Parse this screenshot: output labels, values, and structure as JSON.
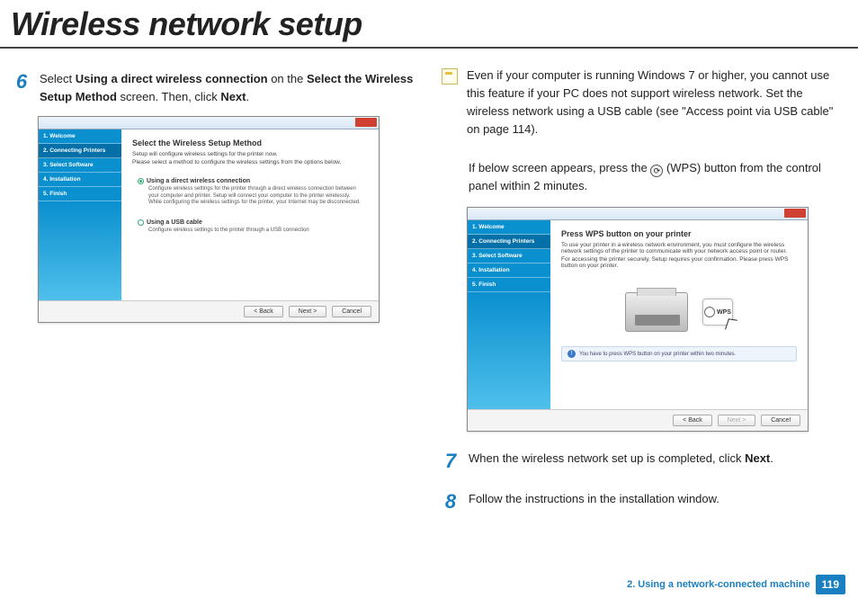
{
  "title": "Wireless network setup",
  "left": {
    "step6_num": "6",
    "step6_a": "Select ",
    "step6_b": "Using a direct wireless connection",
    "step6_c": " on the ",
    "step6_d": "Select the Wireless Setup Method",
    "step6_e": " screen. Then, click ",
    "step6_f": "Next",
    "step6_g": ".",
    "ss": {
      "side": [
        "1. Welcome",
        "2. Connecting Printers",
        "3. Select Software",
        "4. Installation",
        "5. Finish"
      ],
      "heading": "Select the Wireless Setup Method",
      "sub1": "Setup will configure wireless settings for the printer now.",
      "sub2": "Please select a method to configure the wireless settings from the options below.",
      "opt1": "Using a direct wireless connection",
      "opt1desc": "Configure wireless settings for the printer through a direct wireless connection between your computer and printer. Setup will connect your computer to the printer wirelessly. While configuring the wireless settings for the printer, your Internet may be disconnected.",
      "opt2": "Using a USB cable",
      "opt2desc": "Configure wireless settings to the printer through a USB connection",
      "back": "< Back",
      "next": "Next >",
      "cancel": "Cancel"
    }
  },
  "right": {
    "note": "Even if your computer is running Windows 7 or higher, you cannot use this feature if your PC does not support wireless network. Set the wireless network using a USB cable (see \"Access point via USB cable\" on page 114).",
    "wps_a": "If below screen appears, press the ",
    "wps_b": " (WPS) button from the control panel within 2 minutes.",
    "ss": {
      "side": [
        "1. Welcome",
        "2. Connecting Printers",
        "3. Select Software",
        "4. Installation",
        "5. Finish"
      ],
      "heading": "Press WPS button on your printer",
      "sub1": "To use your printer in a wireless network environment, you must configure the wireless network settings of the printer to communicate with your network access point or router.",
      "sub2": "For accessing the printer securely, Setup requires your confirmation. Please press WPS button on your printer.",
      "wps": "WPS",
      "info": "You have to press WPS button on your printer within two minutes.",
      "back": "< Back",
      "next": "Next >",
      "cancel": "Cancel"
    },
    "step7_num": "7",
    "step7_a": "When the wireless network set up is completed, click ",
    "step7_b": "Next",
    "step7_c": ".",
    "step8_num": "8",
    "step8": "Follow the instructions in the installation window."
  },
  "footer": {
    "chapter": "2.  Using a network-connected machine",
    "page": "119"
  }
}
